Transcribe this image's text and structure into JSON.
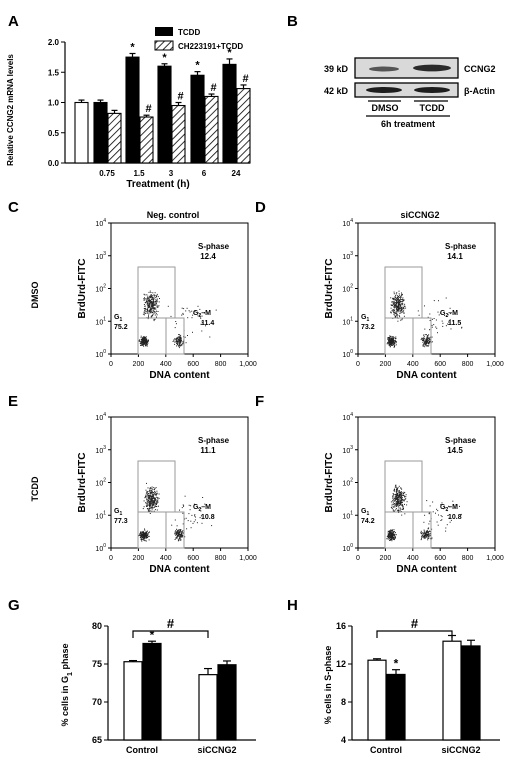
{
  "colors": {
    "filled": "#000000",
    "open": "#ffffff",
    "hatch": "#000000",
    "gate": "#9a9a9a"
  },
  "panel_a": {
    "letter": "A",
    "ylabel": "Relative CCNG2 mRNA levels",
    "xlabel": "Treatment (h)",
    "legend": [
      "TCDD",
      "CH223191+TCDD"
    ],
    "sig_star": "*",
    "sig_hash": "#"
  },
  "panel_b": {
    "letter": "B",
    "mw": [
      "39 kD",
      "42 kD"
    ],
    "proteins": [
      "CCNG2",
      "β-Actin"
    ],
    "lanes": [
      "DMSO",
      "TCDD"
    ],
    "treatment": "6h treatment"
  },
  "flow": {
    "letters": [
      "C",
      "D",
      "E",
      "F"
    ],
    "col_titles": [
      "Neg. control",
      "siCCNG2"
    ],
    "row_titles": [
      "DMSO",
      "TCDD"
    ],
    "ylabel": "BrdUrd-FITC",
    "xlabel": "DNA content",
    "xticks": [
      "0",
      "200",
      "400",
      "600",
      "800",
      "1,000"
    ],
    "ytick_base": "10",
    "ytick_exps": [
      "0",
      "1",
      "2",
      "3",
      "4"
    ],
    "s_label": "S-phase",
    "g1_label": "G",
    "g1_sub": "1",
    "g2_label": "G",
    "g2_sub": "2",
    "g2_suffix": "–M",
    "panels": [
      {
        "s": "12.4",
        "g1": "75.2",
        "g2m": "11.4"
      },
      {
        "s": "14.1",
        "g1": "73.2",
        "g2m": "11.5"
      },
      {
        "s": "11.1",
        "g1": "77.3",
        "g2m": "10.8"
      },
      {
        "s": "14.5",
        "g1": "74.2",
        "g2m": "10.8"
      }
    ]
  },
  "panel_g": {
    "letter": "G",
    "ylabel_pre": "% cells in G",
    "ylabel_sub": "1",
    "ylabel_post": " phase",
    "sig_star": "*",
    "sig_hash": "#"
  },
  "panel_h": {
    "letter": "H",
    "ylabel": "% cells in S-phase",
    "sig_star": "*",
    "sig_hash": "#"
  },
  "chart_data": [
    {
      "id": "A",
      "type": "bar",
      "xlabel": "Treatment (h)",
      "ylabel": "Relative CCNG2 mRNA levels",
      "ylim": [
        0.0,
        2.0
      ],
      "yticks": [
        "0.0",
        "0.5",
        "1.0",
        "1.5",
        "2.0"
      ],
      "categories": [
        "",
        "0.75",
        "1.5",
        "3",
        "6",
        "24"
      ],
      "series": [
        {
          "name": "",
          "style": "open",
          "values": [
            1.0,
            null,
            null,
            null,
            null,
            null
          ],
          "errors": [
            0.04,
            null,
            null,
            null,
            null,
            null
          ]
        },
        {
          "name": "TCDD",
          "style": "filled",
          "values": [
            null,
            1.0,
            1.75,
            1.6,
            1.45,
            1.63
          ],
          "errors": [
            null,
            0.04,
            0.06,
            0.04,
            0.06,
            0.09
          ]
        },
        {
          "name": "CH223191+TCDD",
          "style": "hatched",
          "values": [
            null,
            0.82,
            0.76,
            0.95,
            1.1,
            1.23
          ],
          "errors": [
            null,
            0.05,
            0.03,
            0.05,
            0.04,
            0.06
          ]
        }
      ],
      "annotations": {
        "star_on": [
          "1.5",
          "3",
          "6",
          "24"
        ],
        "hash_on": [
          "1.5",
          "3",
          "6",
          "24"
        ]
      }
    },
    {
      "id": "G",
      "type": "bar",
      "ylabel": "% cells in G1 phase",
      "ylim": [
        65,
        80
      ],
      "yticks": [
        "65",
        "70",
        "75",
        "80"
      ],
      "categories": [
        "Control",
        "siCCNG2"
      ],
      "series": [
        {
          "name": "",
          "style": "open",
          "values": [
            75.3,
            73.6
          ],
          "errors": [
            0.15,
            0.8
          ]
        },
        {
          "name": "",
          "style": "filled",
          "values": [
            77.7,
            74.9
          ],
          "errors": [
            0.3,
            0.5
          ]
        }
      ],
      "annotations": {
        "star_on": "Control filled",
        "hash_bracket": [
          "Control",
          "siCCNG2"
        ]
      }
    },
    {
      "id": "H",
      "type": "bar",
      "ylabel": "% cells in S-phase",
      "ylim": [
        4,
        16
      ],
      "yticks": [
        "4",
        "8",
        "12",
        "16"
      ],
      "categories": [
        "Control",
        "siCCNG2"
      ],
      "series": [
        {
          "name": "",
          "style": "open",
          "values": [
            12.4,
            14.4
          ],
          "errors": [
            0.15,
            0.6
          ]
        },
        {
          "name": "",
          "style": "filled",
          "values": [
            10.9,
            13.9
          ],
          "errors": [
            0.5,
            0.6
          ]
        }
      ],
      "annotations": {
        "star_on": "Control filled",
        "hash_bracket": [
          "Control",
          "siCCNG2"
        ]
      }
    }
  ]
}
